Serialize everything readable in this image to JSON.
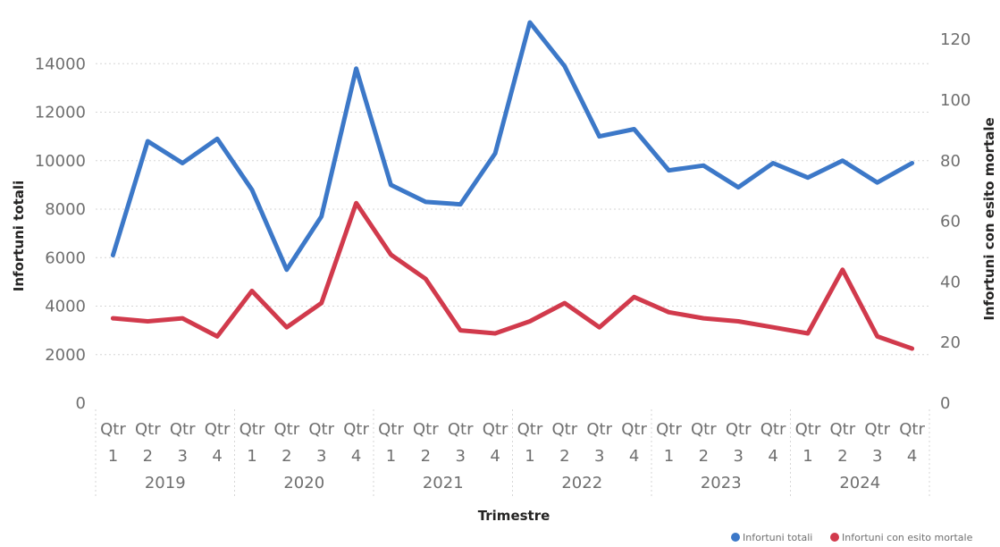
{
  "chart_data": {
    "type": "line",
    "xlabel": "Trimestre",
    "ylabel": "Infortuni totali",
    "y2label": "Infortuni con esito mortale",
    "ylim": [
      0,
      16000
    ],
    "y2lim": [
      0,
      128
    ],
    "y_ticks": [
      "0",
      "2000",
      "4000",
      "6000",
      "8000",
      "10000",
      "12000",
      "14000"
    ],
    "y2_ticks": [
      "0",
      "20",
      "40",
      "60",
      "80",
      "100",
      "120"
    ],
    "years": [
      "2019",
      "2020",
      "2021",
      "2022",
      "2023",
      "2024"
    ],
    "quarter_prefix": "Qtr",
    "quarters": [
      "1",
      "2",
      "3",
      "4"
    ],
    "grid": true,
    "legend_position": "bottom-right",
    "series": [
      {
        "name": "Infortuni totali",
        "axis": "left",
        "color": "#3c78c8",
        "values": [
          6100,
          10800,
          9900,
          10900,
          8800,
          5500,
          7700,
          13800,
          9000,
          8300,
          8200,
          10300,
          15700,
          13900,
          11000,
          11300,
          9600,
          9800,
          8900,
          9900,
          9300,
          10000,
          9100,
          9900
        ]
      },
      {
        "name": "Infortuni con esito mortale",
        "axis": "right",
        "color": "#d13a4c",
        "values": [
          28,
          27,
          28,
          22,
          37,
          25,
          33,
          66,
          49,
          41,
          24,
          23,
          27,
          33,
          25,
          35,
          30,
          28,
          27,
          25,
          23,
          44,
          22,
          18
        ]
      }
    ]
  }
}
